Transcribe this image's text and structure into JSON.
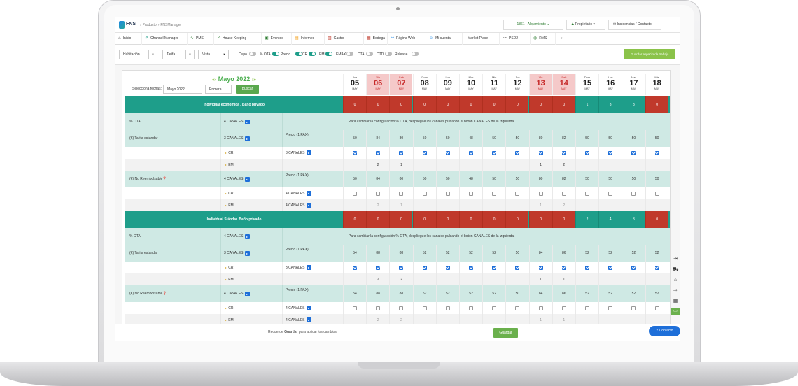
{
  "header": {
    "brand": "FNS",
    "crumb1": "Producto",
    "crumb2": "FNSManager",
    "property": "1861 - Alojamiento",
    "user": "Propietario",
    "incidents": "Incidencias / Contacto"
  },
  "nav": [
    "Inicio",
    "Channel Manager",
    "PMS",
    "House Keeping",
    "Eventos",
    "Informes",
    "Gastro",
    "Bodega",
    "Página Web",
    "Mi cuenta",
    "Market Place",
    "PSD2",
    "RMS"
  ],
  "nav_more": "»",
  "toolbar": {
    "habitacion": "Habitación...",
    "tarifa": "Tarifa...",
    "vista": "Vista...",
    "toggles": [
      {
        "label": "Cupo",
        "on": false
      },
      {
        "label": "% OTA",
        "on": true
      },
      {
        "label": "Precio",
        "on": true
      },
      {
        "label": "CR",
        "on": true
      },
      {
        "label": "EM",
        "on": true
      },
      {
        "label": "EMAX",
        "on": false
      },
      {
        "label": "CTA",
        "on": false
      },
      {
        "label": "CTD",
        "on": false
      },
      {
        "label": "Release",
        "on": false
      }
    ],
    "save_space": "Guardar espacio de trabajo"
  },
  "calendar": {
    "month": "Mayo 2022",
    "select_label": "Selecciona fechas:",
    "month_select": "Mayo 2022",
    "period_select": "Primera",
    "search": "Buscar",
    "days": [
      {
        "dn": "Jue",
        "d": "05",
        "m": "MAY",
        "we": false
      },
      {
        "dn": "Vie",
        "d": "06",
        "m": "MAY",
        "we": true
      },
      {
        "dn": "Sab",
        "d": "07",
        "m": "MAY",
        "we": true
      },
      {
        "dn": "Dom",
        "d": "08",
        "m": "MAY",
        "we": false
      },
      {
        "dn": "Lun",
        "d": "09",
        "m": "MAY",
        "we": false
      },
      {
        "dn": "Mar",
        "d": "10",
        "m": "MAY",
        "we": false
      },
      {
        "dn": "Mie",
        "d": "11",
        "m": "MAY",
        "we": false
      },
      {
        "dn": "Jue",
        "d": "12",
        "m": "MAY",
        "we": false
      },
      {
        "dn": "Vie",
        "d": "13",
        "m": "MAY",
        "we": true
      },
      {
        "dn": "Sab",
        "d": "14",
        "m": "MAY",
        "we": true
      },
      {
        "dn": "Dom",
        "d": "15",
        "m": "MAY",
        "we": false
      },
      {
        "dn": "Lun",
        "d": "16",
        "m": "MAY",
        "we": false
      },
      {
        "dn": "Mar",
        "d": "17",
        "m": "MAY",
        "we": false
      },
      {
        "dn": "Mie",
        "d": "18",
        "m": "MAY",
        "we": false
      }
    ]
  },
  "sections": [
    {
      "title": "Individual económica . Baño privado",
      "avail": [
        0,
        0,
        0,
        0,
        0,
        0,
        0,
        0,
        0,
        0,
        1,
        3,
        3,
        0
      ],
      "ota_label": "% OTA",
      "ota_channels": "4 CANALES",
      "ota_msg": "Para cambiar la configuración % OTA, despliegue los canales pulsando el botón CANALES de la izquierda.",
      "rates": [
        {
          "name": "(€) Tarifa estandar",
          "channels": "3 CANALES",
          "price_label": "Precio (1 PAX)",
          "prices": [
            50,
            84,
            80,
            50,
            50,
            48,
            50,
            50,
            80,
            82,
            50,
            50,
            50,
            50
          ],
          "cr_label": "CR",
          "cr_channels": "3 CANALES",
          "cr": [
            1,
            1,
            1,
            1,
            1,
            1,
            1,
            1,
            1,
            1,
            1,
            1,
            1,
            1
          ],
          "em_label": "EM",
          "em": [
            "",
            "2",
            "1",
            "",
            "",
            "",
            "",
            "",
            "1",
            "2",
            "",
            "",
            "",
            ""
          ]
        },
        {
          "name": "(€) No Reembolsable",
          "channels": "4 CANALES",
          "price_label": "Precio (1 PAX)",
          "prices": [
            50,
            84,
            80,
            50,
            50,
            48,
            50,
            50,
            80,
            82,
            50,
            50,
            50,
            50
          ],
          "cr_label": "CR",
          "cr_channels": "4 CANALES",
          "cr": [
            0,
            0,
            0,
            0,
            0,
            0,
            0,
            0,
            0,
            0,
            0,
            0,
            0,
            0
          ],
          "em_label": "EM",
          "em_channels": "4 CANALES",
          "em": [
            "",
            "2",
            "1",
            "",
            "",
            "",
            "",
            "",
            "1",
            "2",
            "",
            "",
            "",
            ""
          ]
        }
      ]
    },
    {
      "title": "Individual Stándar. Baño privado",
      "avail": [
        0,
        0,
        0,
        0,
        0,
        0,
        0,
        0,
        0,
        0,
        2,
        4,
        3,
        0
      ],
      "ota_label": "% OTA",
      "ota_channels": "4 CANALES",
      "ota_msg": "Para cambiar la configuración % OTA, despliegue los canales pulsando el botón CANALES de la izquierda.",
      "rates": [
        {
          "name": "(€) Tarifa estandar",
          "channels": "3 CANALES",
          "price_label": "Precio (1 PAX)",
          "prices": [
            54,
            88,
            88,
            52,
            52,
            52,
            52,
            50,
            84,
            86,
            52,
            52,
            52,
            52
          ],
          "cr_label": "CR",
          "cr_channels": "3 CANALES",
          "cr": [
            1,
            1,
            1,
            1,
            1,
            1,
            1,
            1,
            1,
            1,
            1,
            1,
            1,
            1
          ],
          "em_label": "EM",
          "em": [
            "",
            "2",
            "2",
            "",
            "",
            "",
            "",
            "",
            "1",
            "1",
            "",
            "",
            "",
            ""
          ]
        },
        {
          "name": "(€) No Reembolsable",
          "channels": "4 CANALES",
          "price_label": "Precio (1 PAX)",
          "prices": [
            54,
            88,
            88,
            52,
            52,
            52,
            52,
            50,
            84,
            86,
            52,
            52,
            52,
            52
          ],
          "cr_label": "CR",
          "cr_channels": "4 CANALES",
          "cr": [
            0,
            0,
            0,
            0,
            0,
            0,
            0,
            0,
            0,
            0,
            0,
            0,
            0,
            0
          ],
          "em_label": "EM",
          "em_channels": "4 CANALES",
          "em": [
            "",
            "2",
            "2",
            "",
            "",
            "",
            "",
            "",
            "1",
            "1",
            "",
            "",
            "",
            ""
          ]
        }
      ]
    }
  ],
  "footer": {
    "recuerde": "Recuerde",
    "recuerde_bold": "Guardar",
    "recuerde_rest": "para aplicar los cambios.",
    "guardar": "Guardar",
    "contacto": "Contacto"
  }
}
